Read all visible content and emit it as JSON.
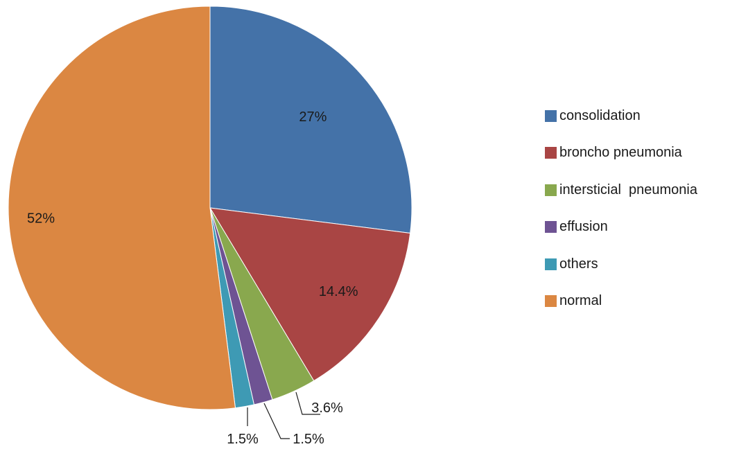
{
  "chart_data": {
    "type": "pie",
    "title": "",
    "slices": [
      {
        "name": "consolidation",
        "value": 27,
        "label": "27%",
        "color": "#4472A8"
      },
      {
        "name": "broncho pneumonia",
        "value": 14.4,
        "label": "14.4%",
        "color": "#A94544"
      },
      {
        "name": "intersticial  pneumonia",
        "value": 3.6,
        "label": "3.6%",
        "color": "#89A84E"
      },
      {
        "name": "effusion",
        "value": 1.5,
        "label": "1.5%",
        "color": "#6E5393"
      },
      {
        "name": "others",
        "value": 1.5,
        "label": "1.5%",
        "color": "#3E9AB4"
      },
      {
        "name": "normal",
        "value": 52,
        "label": "52%",
        "color": "#DB8742"
      }
    ],
    "start_angle_deg": 0,
    "direction": "clockwise",
    "legend_position": "right"
  }
}
